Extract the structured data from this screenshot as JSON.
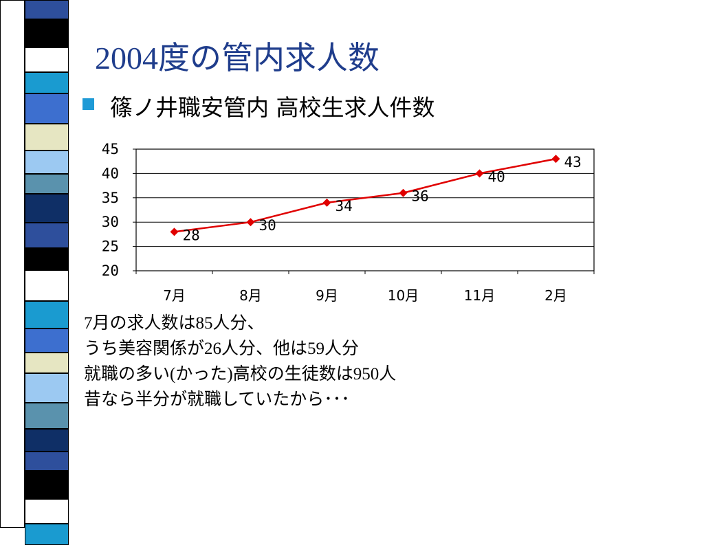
{
  "slide": {
    "title_prefix": "2004",
    "title_rest": "度の管内求人数",
    "subtitle": "篠ノ井職安管内 高校生求人件数",
    "accent_color": "#1f3d8c",
    "bullet_color": "#1e9ad6",
    "bullet_icon": "square-bullet-icon"
  },
  "chart_data": {
    "type": "line",
    "categories": [
      "7月",
      "8月",
      "9月",
      "10月",
      "11月",
      "2月"
    ],
    "series": [
      {
        "values": [
          28,
          30,
          34,
          36,
          40,
          43
        ],
        "color": "#e00000",
        "marker": "diamond"
      }
    ],
    "ylim": [
      20,
      45
    ],
    "yticks": [
      20,
      25,
      30,
      35,
      40,
      45
    ],
    "grid": true,
    "data_labels": true,
    "legend": "none"
  },
  "notes": {
    "line1_a": "7",
    "line1_b": "月の求人数は",
    "line1_c": "85",
    "line1_d": "人分、",
    "line2_a": "うち美容関係が",
    "line2_b": "26",
    "line2_c": "人分、他は",
    "line2_d": "59",
    "line2_e": "人分",
    "line3_a": "就職の多い",
    "line3_b": "(",
    "line3_c": "かった",
    "line3_d": ")",
    "line3_e": "高校の生徒数は",
    "line3_f": "950",
    "line3_g": "人",
    "line4": "昔なら半分が就職していたから･･･"
  }
}
